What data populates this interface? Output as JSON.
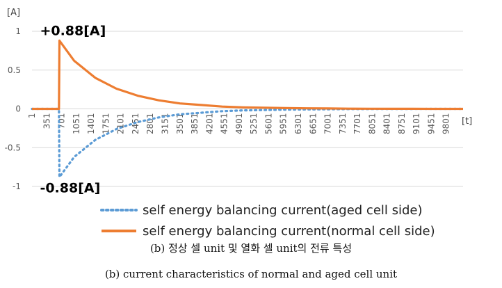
{
  "chart_data": {
    "type": "line",
    "y_unit": "[A]",
    "x_unit": "[t]",
    "ylim": [
      -1,
      1
    ],
    "y_ticks": [
      1,
      0.5,
      0,
      -0.5,
      -1
    ],
    "y_tick_labels": [
      "1",
      "0.5",
      "0",
      "-0.5",
      "-1"
    ],
    "xlim": [
      1,
      10200
    ],
    "x_tick_labels": [
      "1",
      "351",
      "701",
      "1051",
      "1401",
      "1751",
      "2101",
      "2451",
      "2801",
      "3151",
      "3501",
      "3851",
      "4201",
      "4551",
      "4901",
      "5251",
      "5601",
      "5951",
      "6301",
      "6651",
      "7001",
      "7351",
      "7701",
      "8051",
      "8401",
      "8751",
      "9101",
      "9451",
      "9801"
    ],
    "grid": true,
    "legend_position": "bottom",
    "annotations": [
      {
        "text": "+0.88[A]",
        "x": 650,
        "y": 0.88
      },
      {
        "text": "-0.88[A]",
        "x": 650,
        "y": -0.88
      }
    ],
    "series": [
      {
        "name": "self energy balancing current(aged cell side)",
        "style": "dotted",
        "color": "#5B9BD5",
        "x": [
          1,
          640,
          650,
          1000,
          1500,
          2000,
          2500,
          3000,
          3500,
          4000,
          4500,
          5000,
          5500,
          6000,
          6500,
          7000,
          7500,
          8000,
          8500,
          9000,
          9500,
          10200
        ],
        "values": [
          0,
          0,
          -0.88,
          -0.62,
          -0.4,
          -0.26,
          -0.17,
          -0.11,
          -0.07,
          -0.05,
          -0.03,
          -0.02,
          -0.015,
          -0.01,
          -0.007,
          -0.005,
          -0.003,
          -0.002,
          -0.001,
          -0.001,
          0,
          0
        ]
      },
      {
        "name": "self energy balancing current(normal cell side)",
        "style": "solid",
        "color": "#ED7D31",
        "x": [
          1,
          640,
          650,
          1000,
          1500,
          2000,
          2500,
          3000,
          3500,
          4000,
          4500,
          5000,
          5500,
          6000,
          6500,
          7000,
          7500,
          8000,
          8500,
          9000,
          9500,
          10200
        ],
        "values": [
          0,
          0,
          0.88,
          0.62,
          0.4,
          0.26,
          0.17,
          0.11,
          0.07,
          0.05,
          0.03,
          0.02,
          0.015,
          0.01,
          0.007,
          0.005,
          0.003,
          0.002,
          0.001,
          0.001,
          0,
          0
        ]
      }
    ]
  },
  "caption_ko": "(b) 정상 셀 unit 및 열화 셀 unit의 전류 특성",
  "caption_en": "(b) current characteristics of normal and aged cell unit"
}
